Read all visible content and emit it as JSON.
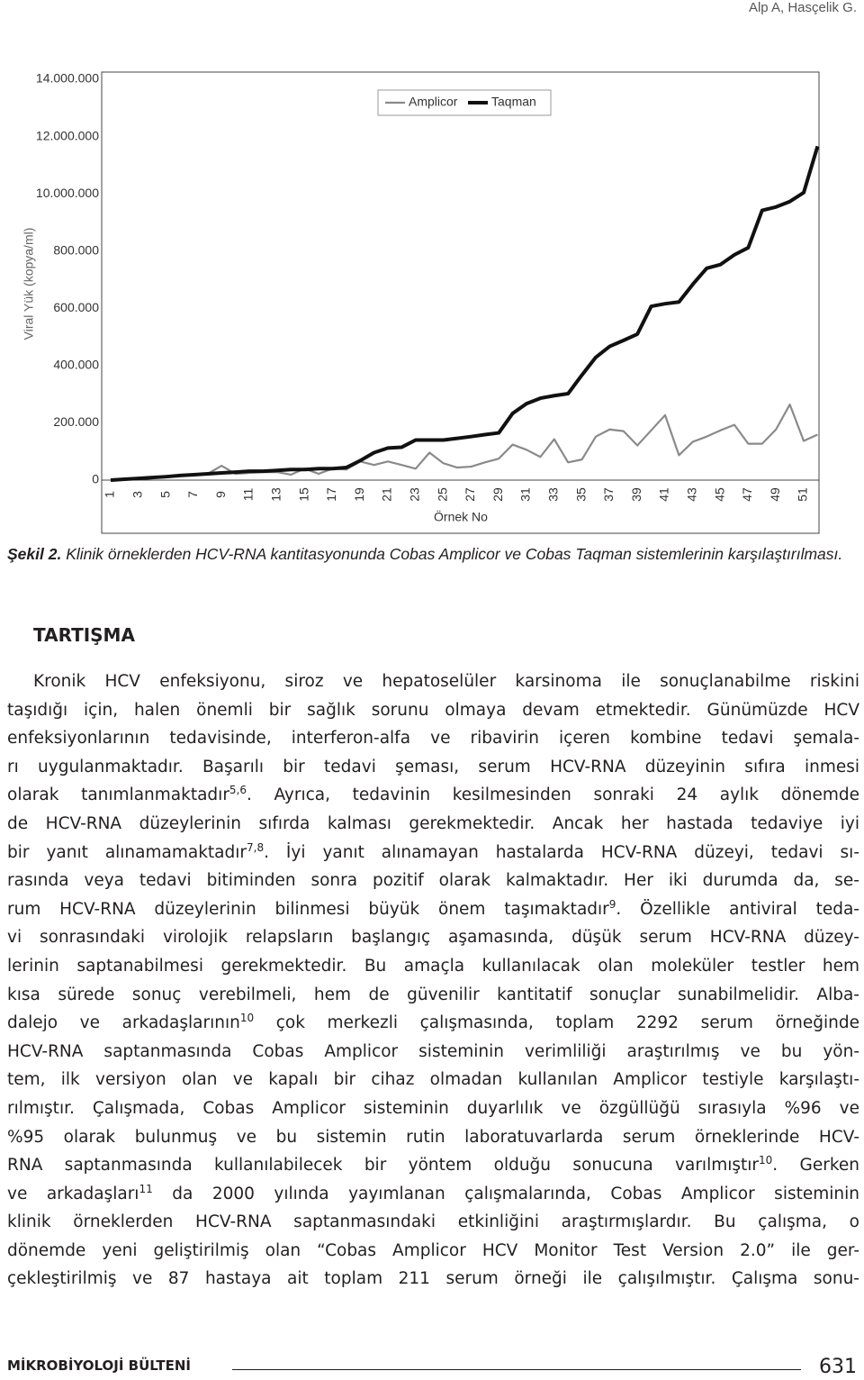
{
  "header": {
    "authors": "Alp A, Hasçelik G."
  },
  "chart_data": {
    "type": "line",
    "y_label": "Viral Yük (kopya/ml)",
    "x_label": "Örnek No",
    "categories": [
      1,
      null,
      3,
      null,
      5,
      null,
      7,
      null,
      9,
      null,
      11,
      null,
      13,
      null,
      15,
      null,
      17,
      null,
      19,
      null,
      21,
      null,
      23,
      null,
      25,
      null,
      27,
      null,
      29,
      null,
      31,
      null,
      33,
      null,
      35,
      null,
      37,
      null,
      39,
      null,
      41,
      null,
      43,
      null,
      45,
      null,
      47,
      null,
      49,
      null,
      51,
      null
    ],
    "series": [
      {
        "name": "Amplicor",
        "color": "#8a8a8a",
        "values": [
          0,
          3000,
          6000,
          9000,
          12000,
          16000,
          19000,
          22000,
          50000,
          22000,
          25000,
          28000,
          28000,
          19000,
          40000,
          22000,
          40000,
          37000,
          65000,
          53000,
          65000,
          53000,
          40000,
          96000,
          59000,
          44000,
          47000,
          62000,
          75000,
          124000,
          106000,
          81000,
          143000,
          62000,
          72000,
          152000,
          177000,
          171000,
          121000,
          174000,
          227000,
          87000,
          134000,
          152000,
          174000,
          193000,
          127000,
          127000,
          177000,
          264000,
          137000,
          159000
        ]
      },
      {
        "name": "Taqman",
        "color": "#111111",
        "values": [
          0,
          3000,
          6000,
          9000,
          12000,
          16000,
          19000,
          22000,
          25000,
          28000,
          31000,
          31000,
          34000,
          37000,
          37000,
          40000,
          40000,
          44000,
          68000,
          96000,
          112000,
          115000,
          140000,
          140000,
          140000,
          146000,
          152000,
          159000,
          165000,
          233000,
          267000,
          286000,
          295000,
          302000,
          367000,
          429000,
          467000,
          488000,
          510000,
          607000,
          616000,
          622000,
          684000,
          740000,
          753000,
          787000,
          1350000,
          7330000,
          7880000,
          8760000,
          10040000,
          11660000
        ]
      }
    ],
    "ylim": [
      0,
      14000000
    ],
    "yticks": [
      0,
      {
        "value": 200000,
        "label": "200.000"
      },
      {
        "value": 400000,
        "label": "400.000"
      },
      {
        "value": 600000,
        "label": "600.000"
      },
      {
        "value": 800000,
        "label": "800.000"
      },
      {
        "value": 10000000,
        "label": "10.000.000"
      },
      {
        "value": 12000000,
        "label": "12.000.000"
      },
      {
        "value": 14000000,
        "label": "14.000.000"
      }
    ],
    "legend": "upper center"
  },
  "caption": {
    "label": "Şekil 2.",
    "text": "Klinik örneklerden HCV-RNA kantitasyonunda Cobas Amplicor ve Cobas Taqman sistemlerinin karşılaştırılması."
  },
  "body": {
    "heading": "TARTIŞMA",
    "lines": [
      [
        {
          "t": "Kronik HCV enfeksiyonu, siroz ve hepatoselüler karsinoma ile sonuçlanabilme riskini"
        }
      ],
      [
        {
          "t": "taşıdığı için, halen önemli bir sağlık sorunu olmaya devam etmektedir. Günümüzde HCV"
        }
      ],
      [
        {
          "t": "enfeksiyonlarının tedavisinde, interferon-alfa ve ribavirin içeren kombine tedavi şemala-"
        }
      ],
      [
        {
          "t": "rı uygulanmaktadır. Başarılı bir tedavi şeması, serum HCV-RNA düzeyinin sıfıra inmesi"
        }
      ],
      [
        {
          "t": "olarak tanımlanmaktadır"
        },
        {
          "sup": "5,6"
        },
        {
          "t": ". Ayrıca, tedavinin kesilmesinden sonraki 24 aylık dönemde"
        }
      ],
      [
        {
          "t": "de HCV-RNA düzeylerinin sıfırda kalması gerekmektedir. Ancak her hastada tedaviye iyi"
        }
      ],
      [
        {
          "t": "bir yanıt alınamamaktadır"
        },
        {
          "sup": "7,8"
        },
        {
          "t": ". İyi yanıt alınamayan hastalarda HCV-RNA düzeyi, tedavi sı-"
        }
      ],
      [
        {
          "t": "rasında veya tedavi bitiminden sonra pozitif olarak kalmaktadır. Her iki durumda da, se-"
        }
      ],
      [
        {
          "t": "rum HCV-RNA düzeylerinin bilinmesi büyük önem taşımaktadır"
        },
        {
          "sup": "9"
        },
        {
          "t": ". Özellikle antiviral teda-"
        }
      ],
      [
        {
          "t": "vi sonrasındaki virolojik relapsların başlangıç aşamasında, düşük serum HCV-RNA düzey-"
        }
      ],
      [
        {
          "t": "lerinin saptanabilmesi gerekmektedir. Bu amaçla kullanılacak olan moleküler testler hem"
        }
      ],
      [
        {
          "t": "kısa sürede sonuç verebilmeli, hem de güvenilir kantitatif sonuçlar sunabilmelidir. Alba-"
        }
      ],
      [
        {
          "t": "dalejo ve arkadaşlarının"
        },
        {
          "sup": "10"
        },
        {
          "t": " çok merkezli çalışmasında, toplam 2292 serum örneğinde"
        }
      ],
      [
        {
          "t": "HCV-RNA saptanmasında Cobas Amplicor sisteminin verimliliği araştırılmış ve bu yön-"
        }
      ],
      [
        {
          "t": "tem, ilk versiyon olan ve kapalı bir cihaz olmadan kullanılan Amplicor testiyle karşılaştı-"
        }
      ],
      [
        {
          "t": "rılmıştır. Çalışmada, Cobas Amplicor sisteminin duyarlılık ve özgüllüğü sırasıyla %96 ve"
        }
      ],
      [
        {
          "t": "%95 olarak bulunmuş ve bu sistemin rutin laboratuvarlarda serum örneklerinde HCV-"
        }
      ],
      [
        {
          "t": "RNA saptanmasında kullanılabilecek bir yöntem olduğu sonucuna varılmıştır"
        },
        {
          "sup": "10"
        },
        {
          "t": ". Gerken"
        }
      ],
      [
        {
          "t": "ve arkadaşları"
        },
        {
          "sup": "11"
        },
        {
          "t": " da 2000 yılında yayımlanan çalışmalarında, Cobas Amplicor sisteminin"
        }
      ],
      [
        {
          "t": "klinik örneklerden HCV-RNA saptanmasındaki etkinliğini araştırmışlardır. Bu çalışma, o"
        }
      ],
      [
        {
          "t": "dönemde yeni geliştirilmiş olan “Cobas Amplicor HCV Monitor Test Version 2.0” ile ger-"
        }
      ],
      [
        {
          "t": "çekleştirilmiş ve 87 hastaya ait toplam 211 serum örneği ile çalışılmıştır. Çalışma sonu-"
        }
      ]
    ]
  },
  "footer": {
    "journal": "MİKROBİYOLOJİ BÜLTENİ",
    "page": "631"
  }
}
